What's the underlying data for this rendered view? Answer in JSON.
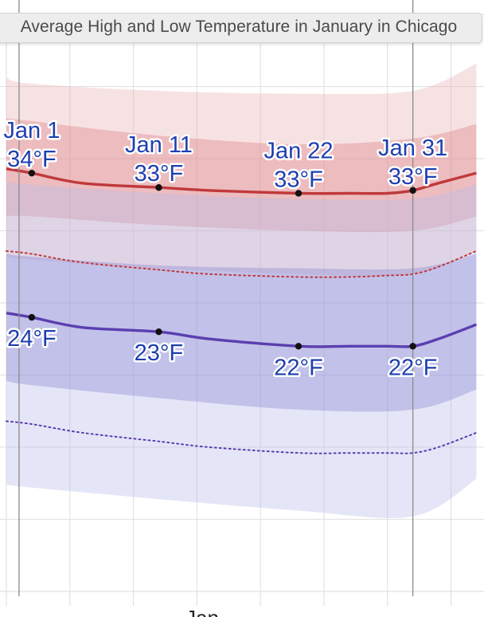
{
  "chart_data": {
    "type": "area",
    "title": "Average High and Low Temperature in January in Chicago",
    "x_axis_label": "Jan",
    "series": [
      {
        "name": "",
        "color": "#c0393b",
        "x": [
          -1,
          1,
          5,
          11,
          15,
          22,
          26,
          29,
          31,
          33,
          36
        ],
        "values": [
          34.3,
          34.0,
          33.3,
          33.0,
          32.8,
          32.6,
          32.6,
          32.6,
          32.8,
          33.3,
          34.0
        ]
      },
      {
        "name": "",
        "color": "#5a3fb0",
        "x": [
          -1,
          1,
          5,
          11,
          15,
          22,
          26,
          29,
          31,
          33,
          36
        ],
        "values": [
          24.3,
          24.0,
          23.3,
          23.0,
          22.5,
          22.0,
          22.0,
          22.0,
          22.0,
          22.5,
          23.5
        ]
      }
    ],
    "bands": [
      {
        "name": "high_p10_p90",
        "color": "#e9b3b6",
        "x": [
          -1,
          1,
          11,
          22,
          31,
          36
        ],
        "lower": [
          28.2,
          28.0,
          27.4,
          27.0,
          27.0,
          28.6
        ],
        "upper": [
          40.6,
          40.2,
          39.7,
          39.5,
          39.7,
          41.6
        ]
      },
      {
        "name": "high_p25_p75",
        "color": "#d97f85",
        "x": [
          -1,
          1,
          11,
          22,
          31,
          36
        ],
        "lower": [
          31.0,
          31.0,
          30.4,
          30.0,
          30.0,
          31.0
        ],
        "upper": [
          37.8,
          37.6,
          36.6,
          36.0,
          36.4,
          37.4
        ]
      },
      {
        "name": "low_p10_p90",
        "color": "#b9bcea",
        "x": [
          -1,
          1,
          11,
          22,
          31,
          36
        ],
        "lower": [
          12.4,
          12.2,
          11.4,
          10.6,
          10.2,
          12.8
        ],
        "upper": [
          33.4,
          33.2,
          32.6,
          32.2,
          32.2,
          33.2
        ]
      },
      {
        "name": "low_p25_p75",
        "color": "#8b86d2",
        "x": [
          -1,
          1,
          11,
          22,
          31,
          36
        ],
        "lower": [
          19.6,
          19.3,
          18.4,
          17.6,
          17.6,
          19.0
        ],
        "upper": [
          28.4,
          28.2,
          27.6,
          27.4,
          27.4,
          28.4
        ]
      }
    ],
    "dotted_lines": [
      {
        "color": "#c0393b",
        "x": [
          -1,
          1,
          5,
          11,
          15,
          22,
          26,
          29,
          31,
          33,
          36
        ],
        "values": [
          28.6,
          28.4,
          27.8,
          27.3,
          27.0,
          26.8,
          26.8,
          26.9,
          27.0,
          27.5,
          28.6
        ]
      },
      {
        "color": "#5a3fb0",
        "x": [
          -1,
          1,
          5,
          11,
          15,
          22,
          26,
          29,
          31,
          33,
          36
        ],
        "values": [
          16.8,
          16.6,
          16.0,
          15.4,
          15.0,
          14.6,
          14.6,
          14.6,
          14.6,
          15.0,
          16.0
        ]
      }
    ],
    "annotations": [
      {
        "date": "Jan 1",
        "temp": "34°F",
        "x": 1,
        "value": 34
      },
      {
        "date": "Jan 11",
        "temp": "33°F",
        "x": 11,
        "value": 33
      },
      {
        "date": "Jan 22",
        "temp": "33°F",
        "x": 22,
        "value": 32.6
      },
      {
        "date": "Jan 31",
        "temp": "33°F",
        "x": 31,
        "value": 32.8
      },
      {
        "date": "",
        "temp": "24°F",
        "x": 1,
        "value": 24
      },
      {
        "date": "",
        "temp": "23°F",
        "x": 11,
        "value": 23
      },
      {
        "date": "",
        "temp": "22°F",
        "x": 22,
        "value": 22
      },
      {
        "date": "",
        "temp": "22°F",
        "x": 31,
        "value": 22
      }
    ],
    "xlim": [
      -1.5,
      36.6
    ],
    "ylim": [
      4,
      46
    ],
    "month_boundaries": [
      0,
      31
    ],
    "grid": true
  }
}
